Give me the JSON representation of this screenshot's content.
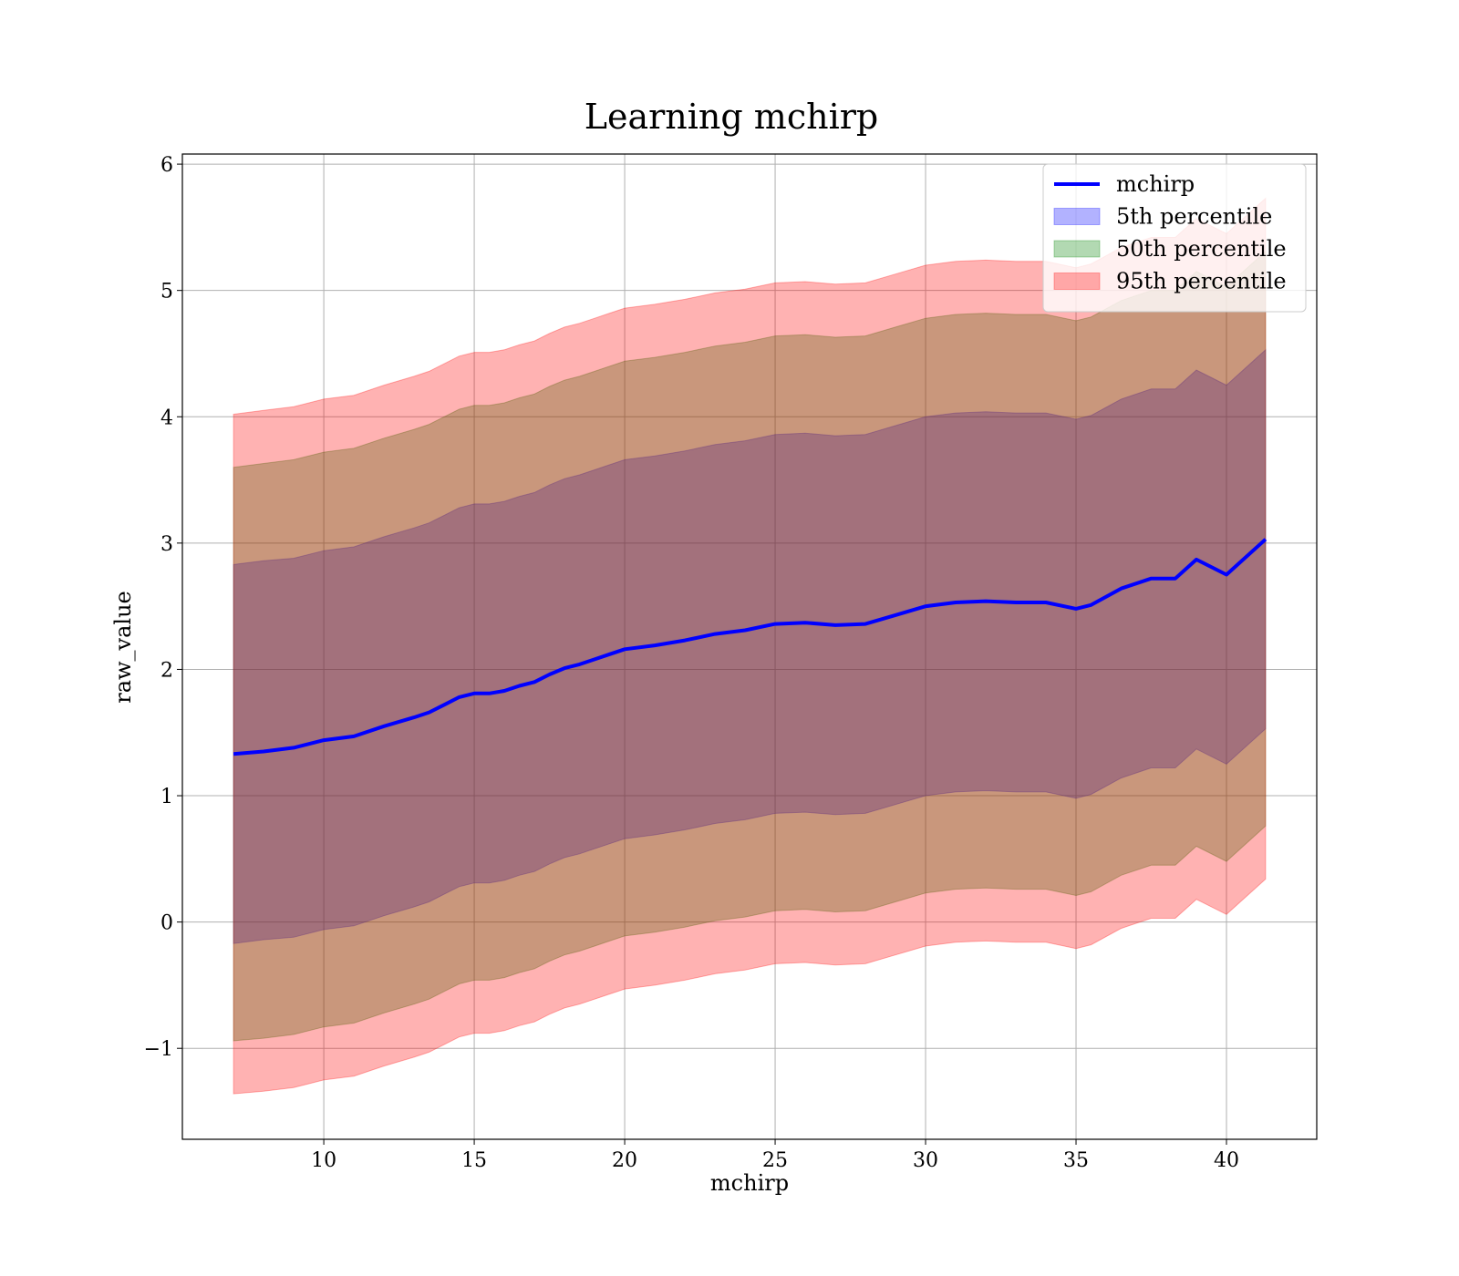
{
  "chart_data": {
    "type": "area",
    "title": "Learning mchirp",
    "xlabel": "mchirp",
    "ylabel": "raw_value",
    "xlim": [
      5.3,
      43
    ],
    "ylim": [
      -1.72,
      6.08
    ],
    "xticks": [
      10,
      15,
      20,
      25,
      30,
      35,
      40
    ],
    "yticks": [
      -1,
      0,
      1,
      2,
      3,
      4,
      5,
      6
    ],
    "xtick_labels": [
      "10",
      "15",
      "20",
      "25",
      "30",
      "35",
      "40"
    ],
    "ytick_labels": [
      "−1",
      "0",
      "1",
      "2",
      "3",
      "4",
      "5",
      "6"
    ],
    "grid": true,
    "legend_position": "top-right",
    "x": [
      7.0,
      8.0,
      9.0,
      10.0,
      11.0,
      12.0,
      13.0,
      13.5,
      14.0,
      14.5,
      15.0,
      15.5,
      16.0,
      16.5,
      17.0,
      17.5,
      18.0,
      18.5,
      19.0,
      19.5,
      20.0,
      21.0,
      22.0,
      23.0,
      24.0,
      25.0,
      26.0,
      27.0,
      28.0,
      29.0,
      30.0,
      31.0,
      32.0,
      33.0,
      34.0,
      35.0,
      35.5,
      36.5,
      37.5,
      38.3,
      39.0,
      40.0,
      41.3
    ],
    "series": [
      {
        "name": "mchirp",
        "type": "line",
        "color": "#0000ff",
        "values": [
          1.33,
          1.35,
          1.38,
          1.44,
          1.47,
          1.55,
          1.62,
          1.66,
          1.72,
          1.78,
          1.81,
          1.81,
          1.83,
          1.87,
          1.9,
          1.96,
          2.01,
          2.04,
          2.08,
          2.12,
          2.16,
          2.19,
          2.23,
          2.28,
          2.31,
          2.36,
          2.37,
          2.35,
          2.36,
          2.43,
          2.5,
          2.53,
          2.54,
          2.53,
          2.53,
          2.48,
          2.51,
          2.64,
          2.72,
          2.72,
          2.87,
          2.75,
          3.03
        ]
      },
      {
        "name": "5th percentile",
        "type": "band",
        "color": "#0000ff",
        "upper": [
          2.83,
          2.86,
          2.88,
          2.94,
          2.97,
          3.05,
          3.12,
          3.16,
          3.22,
          3.28,
          3.31,
          3.31,
          3.33,
          3.37,
          3.4,
          3.46,
          3.51,
          3.54,
          3.58,
          3.62,
          3.66,
          3.69,
          3.73,
          3.78,
          3.81,
          3.86,
          3.87,
          3.85,
          3.86,
          3.93,
          4.0,
          4.03,
          4.04,
          4.03,
          4.03,
          3.98,
          4.01,
          4.14,
          4.22,
          4.22,
          4.37,
          4.25,
          4.53
        ],
        "lower": [
          -0.17,
          -0.14,
          -0.12,
          -0.06,
          -0.03,
          0.05,
          0.12,
          0.16,
          0.22,
          0.28,
          0.31,
          0.31,
          0.33,
          0.37,
          0.4,
          0.46,
          0.51,
          0.54,
          0.58,
          0.62,
          0.66,
          0.69,
          0.73,
          0.78,
          0.81,
          0.86,
          0.87,
          0.85,
          0.86,
          0.93,
          1.0,
          1.03,
          1.04,
          1.03,
          1.03,
          0.98,
          1.01,
          1.14,
          1.22,
          1.22,
          1.37,
          1.25,
          1.53
        ]
      },
      {
        "name": "50th percentile",
        "type": "band",
        "color": "#008000",
        "upper": [
          3.6,
          3.63,
          3.66,
          3.72,
          3.75,
          3.83,
          3.9,
          3.94,
          4.0,
          4.06,
          4.09,
          4.09,
          4.11,
          4.15,
          4.18,
          4.24,
          4.29,
          4.32,
          4.36,
          4.4,
          4.44,
          4.47,
          4.51,
          4.56,
          4.59,
          4.64,
          4.65,
          4.63,
          4.64,
          4.71,
          4.78,
          4.81,
          4.82,
          4.81,
          4.81,
          4.76,
          4.79,
          4.92,
          5.0,
          5.0,
          5.15,
          5.03,
          5.31
        ],
        "lower": [
          -0.94,
          -0.92,
          -0.89,
          -0.83,
          -0.8,
          -0.72,
          -0.65,
          -0.61,
          -0.55,
          -0.49,
          -0.46,
          -0.46,
          -0.44,
          -0.4,
          -0.37,
          -0.31,
          -0.26,
          -0.23,
          -0.19,
          -0.15,
          -0.11,
          -0.08,
          -0.04,
          0.01,
          0.04,
          0.09,
          0.1,
          0.08,
          0.09,
          0.16,
          0.23,
          0.26,
          0.27,
          0.26,
          0.26,
          0.21,
          0.24,
          0.37,
          0.45,
          0.45,
          0.6,
          0.48,
          0.76
        ]
      },
      {
        "name": "95th percentile",
        "type": "band",
        "color": "#ff0000",
        "upper": [
          4.02,
          4.05,
          4.08,
          4.14,
          4.17,
          4.25,
          4.32,
          4.36,
          4.42,
          4.48,
          4.51,
          4.51,
          4.53,
          4.57,
          4.6,
          4.66,
          4.71,
          4.74,
          4.78,
          4.82,
          4.86,
          4.89,
          4.93,
          4.98,
          5.01,
          5.06,
          5.07,
          5.05,
          5.06,
          5.13,
          5.2,
          5.23,
          5.24,
          5.23,
          5.23,
          5.18,
          5.21,
          5.34,
          5.42,
          5.42,
          5.57,
          5.45,
          5.73
        ],
        "lower": [
          -1.36,
          -1.34,
          -1.31,
          -1.25,
          -1.22,
          -1.14,
          -1.07,
          -1.03,
          -0.97,
          -0.91,
          -0.88,
          -0.88,
          -0.86,
          -0.82,
          -0.79,
          -0.73,
          -0.68,
          -0.65,
          -0.61,
          -0.57,
          -0.53,
          -0.5,
          -0.46,
          -0.41,
          -0.38,
          -0.33,
          -0.32,
          -0.34,
          -0.33,
          -0.26,
          -0.19,
          -0.16,
          -0.15,
          -0.16,
          -0.16,
          -0.21,
          -0.18,
          -0.05,
          0.03,
          0.03,
          0.18,
          0.06,
          0.34
        ]
      }
    ]
  }
}
